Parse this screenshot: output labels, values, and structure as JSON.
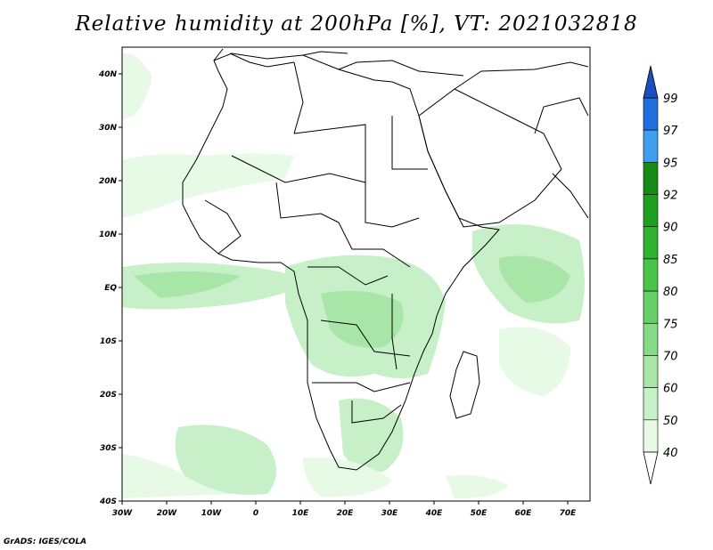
{
  "title": "Relative humidity at 200hPa [%], VT: 2021032818",
  "credit": "GrADS: IGES/COLA",
  "map": {
    "lon_range": [
      -30,
      75
    ],
    "lat_range": [
      -40,
      45
    ],
    "x_ticks": [
      "30W",
      "20W",
      "10W",
      "0",
      "10E",
      "20E",
      "30E",
      "40E",
      "50E",
      "60E",
      "70E"
    ],
    "y_ticks": [
      "40N",
      "30N",
      "20N",
      "10N",
      "EQ",
      "10S",
      "20S",
      "30S",
      "40S"
    ]
  },
  "colorbar": {
    "levels": [
      "40",
      "50",
      "60",
      "70",
      "75",
      "80",
      "85",
      "90",
      "92",
      "95",
      "97",
      "99"
    ],
    "colors": [
      "#ffffff",
      "#e6fae6",
      "#c8f0c8",
      "#a7e6a7",
      "#86dc86",
      "#66d066",
      "#48c448",
      "#2fb22f",
      "#1f9f1f",
      "#168c16",
      "#3f9fef",
      "#1f6fdf",
      "#1a4fbf"
    ]
  }
}
